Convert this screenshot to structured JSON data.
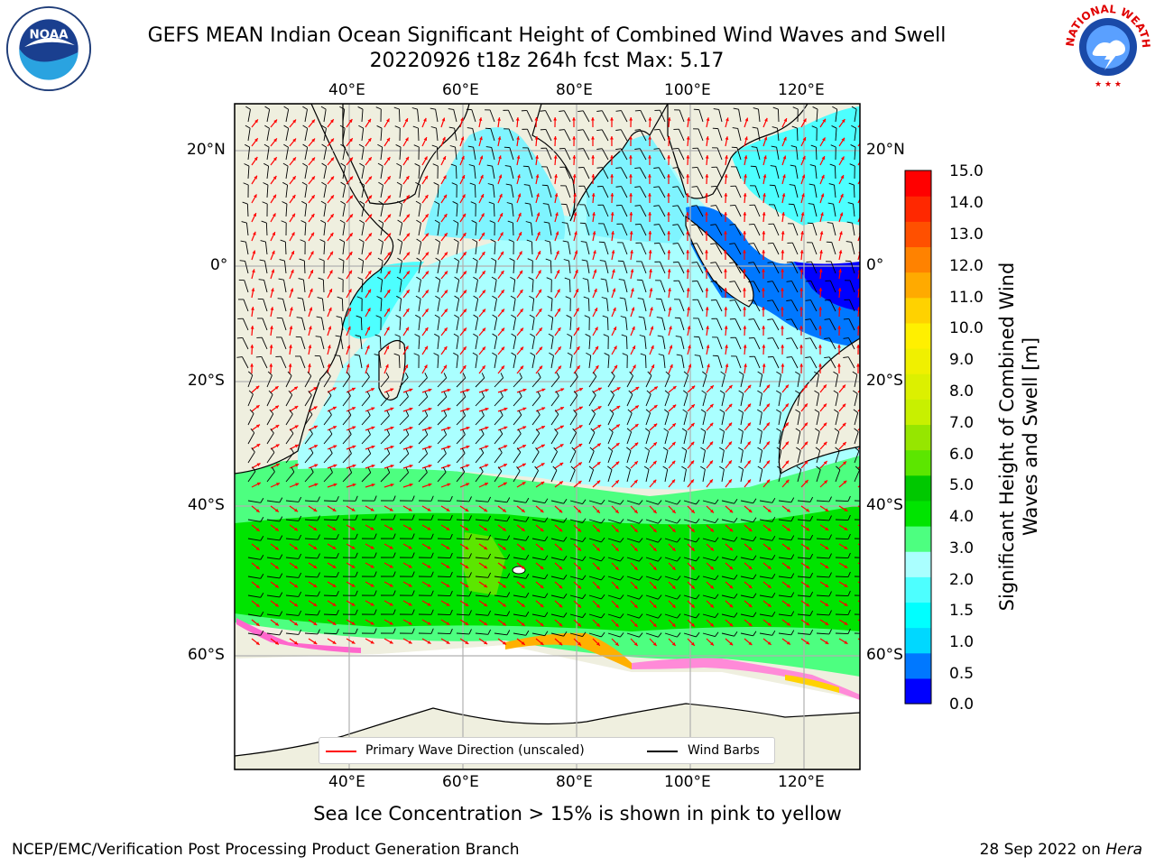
{
  "header": {
    "title_line1": "GEFS MEAN Indian Ocean Significant Height of Combined Wind Waves and Swell",
    "title_line2": "20220926 t18z 264h fcst   Max: 5.17"
  },
  "map": {
    "type": "regional-forecast-map",
    "lon_range": [
      20,
      130
    ],
    "lat_range": [
      -73,
      28
    ],
    "gridlines": true,
    "top_lon_labels": [
      "40°E",
      "60°E",
      "80°E",
      "100°E",
      "120°E"
    ],
    "bottom_lon_labels": [
      "40°E",
      "60°E",
      "80°E",
      "100°E",
      "120°E"
    ],
    "left_lat_labels": [
      "20°N",
      "0°",
      "20°S",
      "40°S",
      "60°S"
    ],
    "right_lat_labels": [
      "20°N",
      "0°",
      "20°S",
      "40°S",
      "60°S"
    ],
    "colors": {
      "land": "#efefdf",
      "ocean_low": "#00c8ff",
      "ocean_mid": "#7ff4ff",
      "ocean_high": "#00e400",
      "wave_arrow": "#ff0000",
      "wind_barb": "#000000"
    }
  },
  "legend": {
    "primary_wave": "Primary Wave Direction (unscaled)",
    "wind_barbs": "Wind Barbs"
  },
  "colorbar": {
    "title": "Significant Height of Combined Wind Waves and Swell [m]",
    "tick_labels": [
      "15.0",
      "14.0",
      "13.0",
      "12.0",
      "11.0",
      "10.0",
      "9.0",
      "8.0",
      "7.0",
      "6.0",
      "5.0",
      "4.0",
      "3.0",
      "2.0",
      "1.5",
      "1.0",
      "0.5",
      "0.0"
    ],
    "colors_bottom_to_top": [
      "#0000ff",
      "#0078ff",
      "#00d8ff",
      "#00ffff",
      "#4dffff",
      "#aaffff",
      "#4dff80",
      "#00e400",
      "#00c800",
      "#5ce600",
      "#96e600",
      "#c8f000",
      "#dcf000",
      "#f0f000",
      "#fff000",
      "#ffd200",
      "#ffaa00",
      "#ff8200",
      "#ff5000",
      "#ff2800",
      "#ff0000"
    ]
  },
  "notes": {
    "sea_ice": "Sea Ice Concentration > 15% is shown in pink to yellow"
  },
  "footer": {
    "left": "NCEP/EMC/Verification Post Processing Product Generation Branch",
    "right_date": "28 Sep 2022 on ",
    "right_host": "Hera"
  },
  "logos": {
    "left": "noaa-logo",
    "right": "nws-logo"
  }
}
